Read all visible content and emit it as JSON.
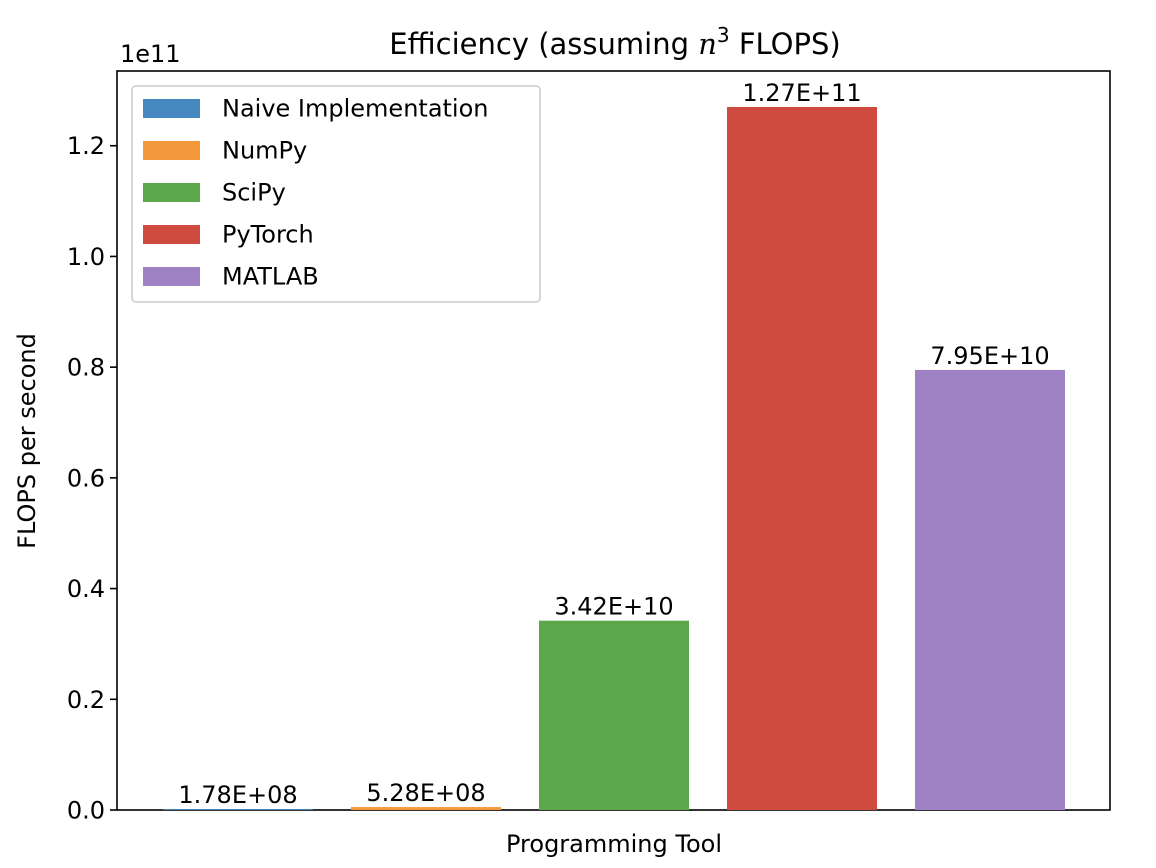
{
  "chart_data": {
    "type": "bar",
    "title_prefix": "Efficiency (assuming ",
    "title_math_base": "n",
    "title_math_exp": "3",
    "title_suffix": " FLOPS)",
    "xlabel": "Programming Tool",
    "ylabel": "FLOPS per second",
    "y_multiplier": "1e11",
    "ylim": [
      0,
      1.335
    ],
    "yticks": [
      0.0,
      0.2,
      0.4,
      0.6,
      0.8,
      1.0,
      1.2
    ],
    "ytick_labels": [
      "0.0",
      "0.2",
      "0.4",
      "0.6",
      "0.8",
      "1.0",
      "1.2"
    ],
    "grid": false,
    "legend_position": "top-left",
    "series": [
      {
        "name": "Naive Implementation",
        "value": 0.00178,
        "label": "1.78E+08",
        "color": "#4589c0"
      },
      {
        "name": "NumPy",
        "value": 0.00528,
        "label": "5.28E+08",
        "color": "#f3993b"
      },
      {
        "name": "SciPy",
        "value": 0.342,
        "label": "3.42E+10",
        "color": "#5ba84b"
      },
      {
        "name": "PyTorch",
        "value": 1.27,
        "label": "1.27E+11",
        "color": "#cf4b3f"
      },
      {
        "name": "MATLAB",
        "value": 0.795,
        "label": "7.95E+10",
        "color": "#9f82c4"
      }
    ]
  }
}
